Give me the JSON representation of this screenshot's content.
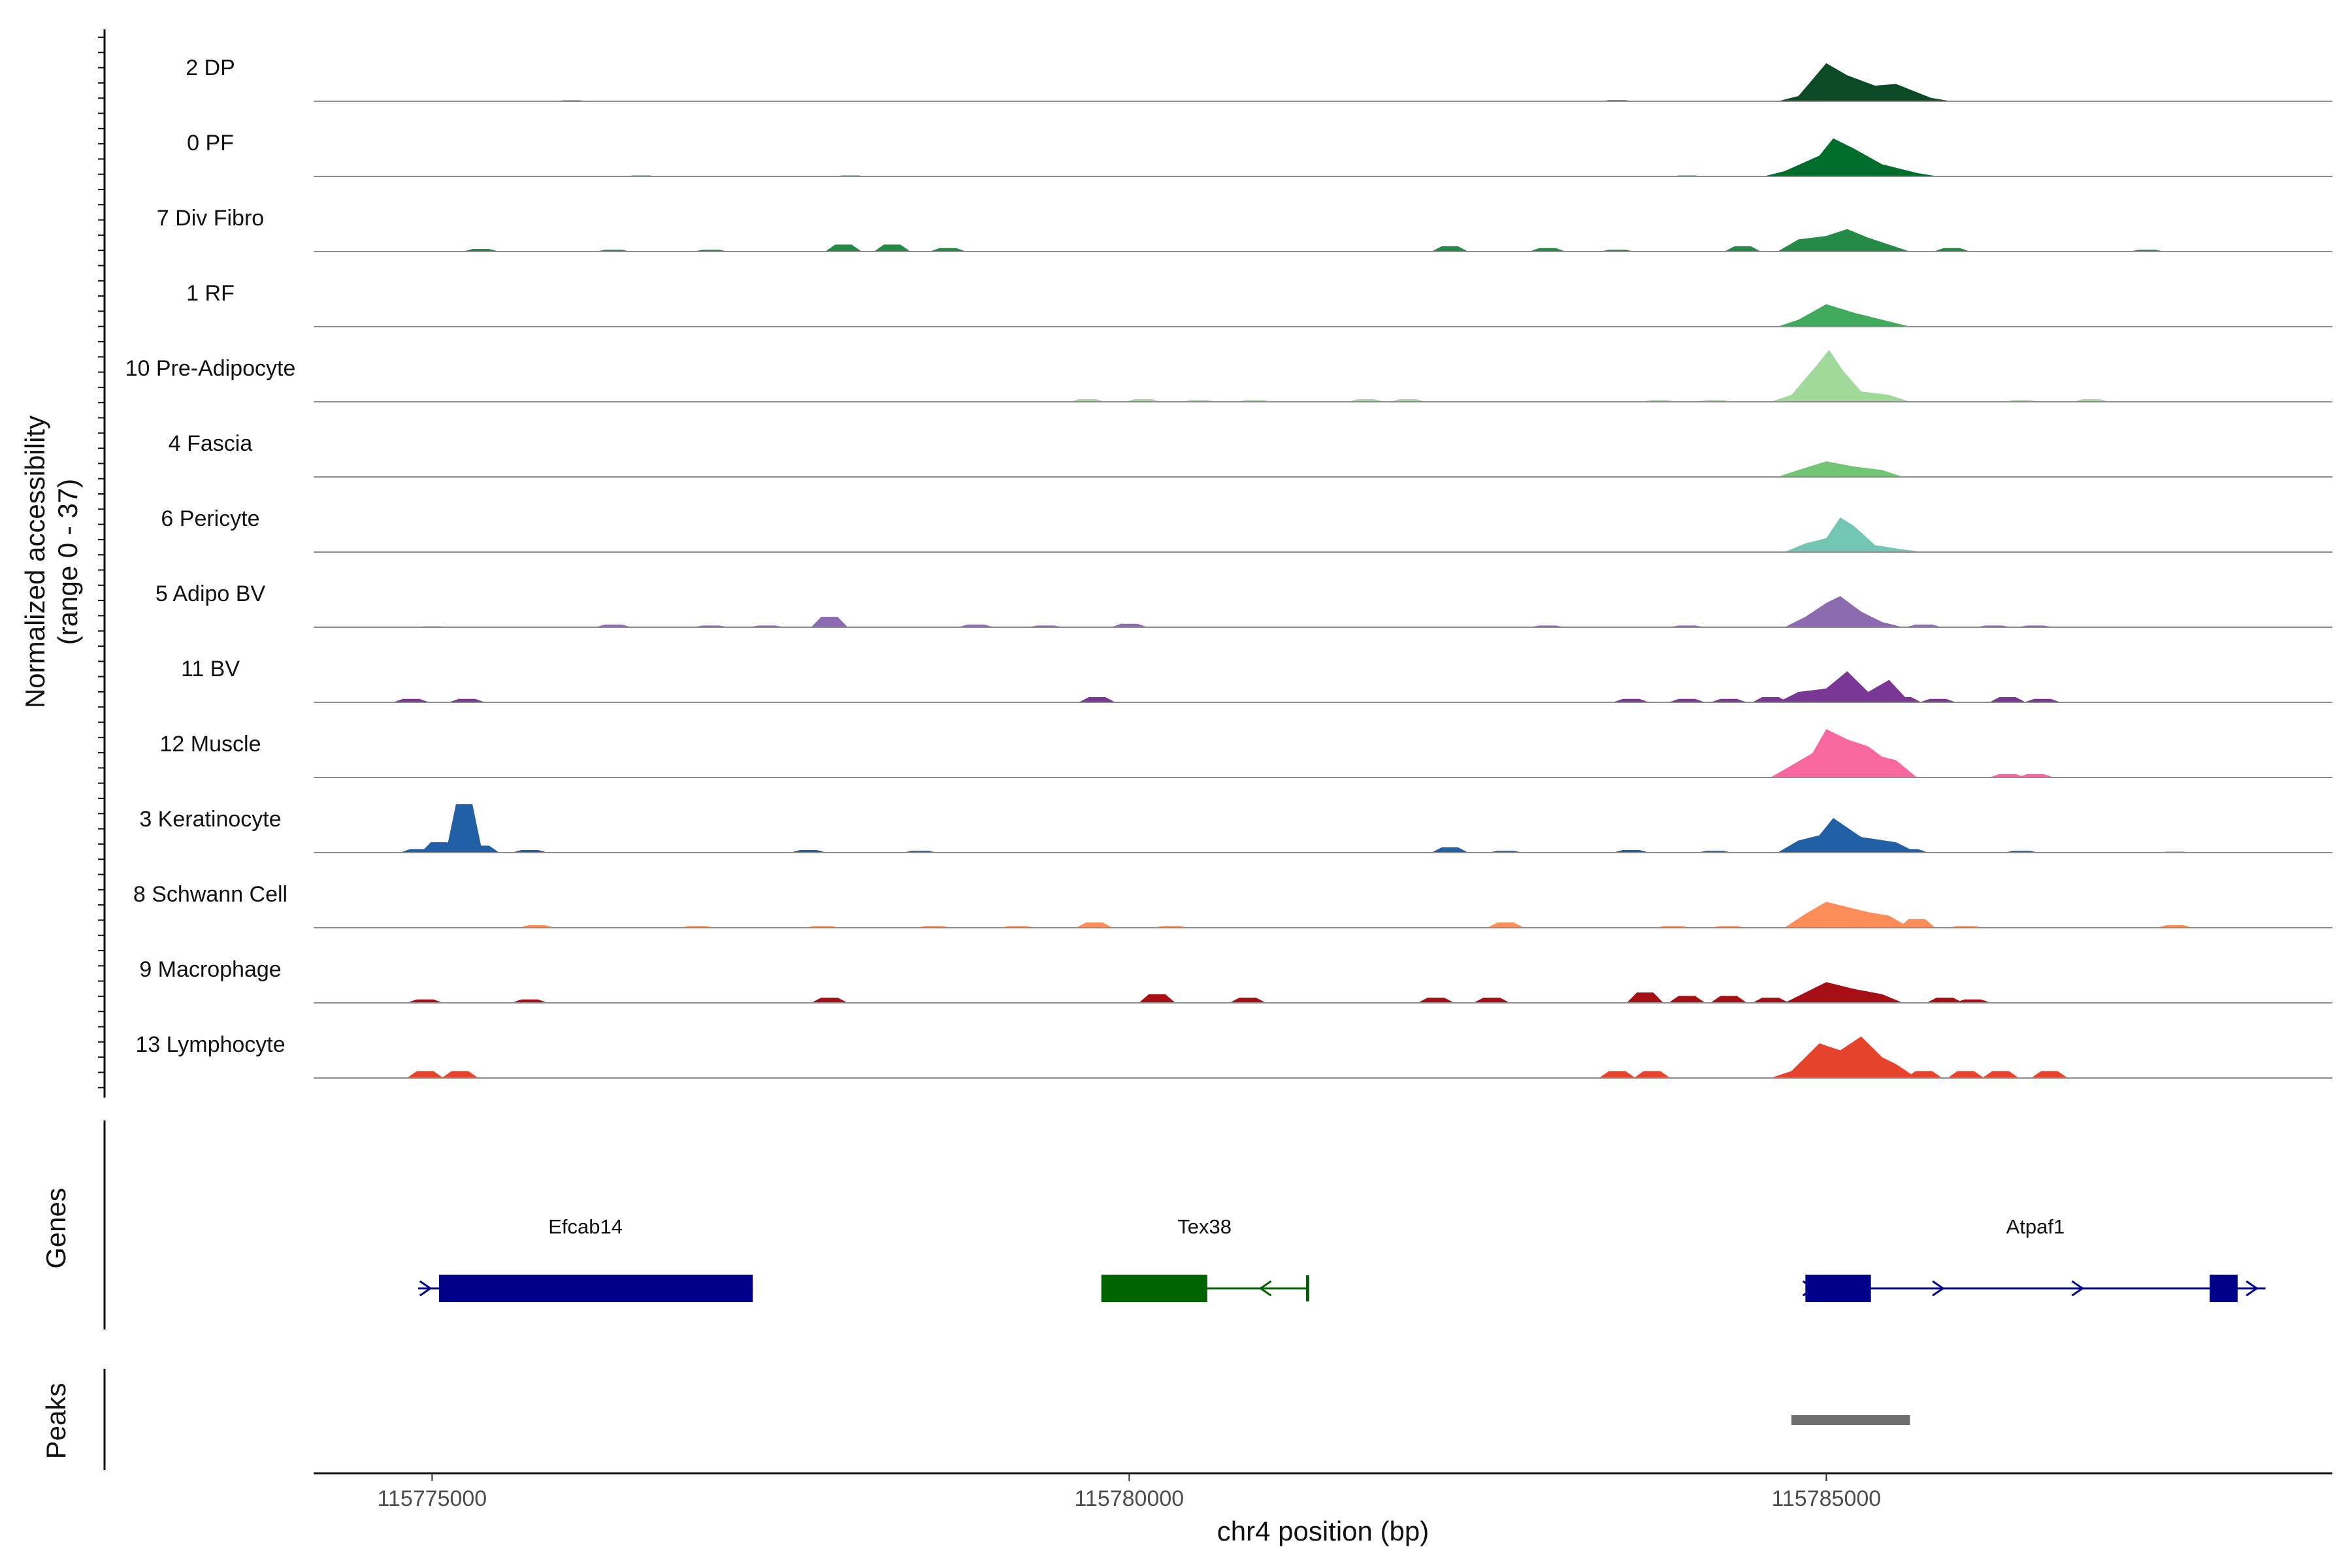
{
  "chart_data": {
    "type": "area",
    "title": "",
    "ylabel": "Normalized accessibility",
    "ylabel_range": "(range 0 - 37)",
    "ylim": [
      0,
      37
    ],
    "xlabel": "chr4 position (bp)",
    "xlim": [
      115774150,
      115788630
    ],
    "xticks": [
      115775000,
      115780000,
      115785000
    ],
    "xtick_labels": [
      "115775000",
      "115780000",
      "115785000"
    ],
    "tracks": [
      {
        "name": "2 DP",
        "color": "#0b4a24",
        "background": [
          [
            115775000,
            0.3
          ],
          [
            115776000,
            0.5
          ],
          [
            115777500,
            0.4
          ],
          [
            115779000,
            0.4
          ],
          [
            115780500,
            0.3
          ],
          [
            115782000,
            0.3
          ],
          [
            115783500,
            0.6
          ],
          [
            115786500,
            0.4
          ],
          [
            115787800,
            0.3
          ]
        ],
        "peaks": [
          [
            115784800,
            3
          ],
          [
            115785000,
            22
          ],
          [
            115785150,
            15
          ],
          [
            115785350,
            9
          ],
          [
            115785500,
            10
          ],
          [
            115785750,
            2
          ]
        ]
      },
      {
        "name": "0 PF",
        "color": "#006d2c",
        "background": [
          [
            115775000,
            0.4
          ],
          [
            115776500,
            0.5
          ],
          [
            115778000,
            0.5
          ],
          [
            115779500,
            0.4
          ],
          [
            115781000,
            0.4
          ],
          [
            115782500,
            0.4
          ],
          [
            115784000,
            0.5
          ],
          [
            115787000,
            0.4
          ]
        ],
        "peaks": [
          [
            115784700,
            3
          ],
          [
            115784950,
            12
          ],
          [
            115785050,
            22
          ],
          [
            115785200,
            16
          ],
          [
            115785400,
            7
          ],
          [
            115785650,
            2
          ]
        ]
      },
      {
        "name": "7 Div Fibro",
        "color": "#238b45",
        "background": [
          [
            115775350,
            1.5
          ],
          [
            115776300,
            1
          ],
          [
            115777000,
            1
          ],
          [
            115777950,
            4
          ],
          [
            115778300,
            4
          ],
          [
            115778700,
            2
          ],
          [
            115782300,
            3
          ],
          [
            115783000,
            2
          ],
          [
            115783500,
            1
          ],
          [
            115784400,
            3
          ],
          [
            115785900,
            2
          ],
          [
            115787300,
            1
          ]
        ],
        "peaks": [
          [
            115784800,
            7
          ],
          [
            115785000,
            9
          ],
          [
            115785150,
            13
          ],
          [
            115785300,
            8
          ],
          [
            115785450,
            4
          ]
        ]
      },
      {
        "name": "1 RF",
        "color": "#41ab5d",
        "background": [
          [
            115776000,
            0.3
          ],
          [
            115778000,
            0.3
          ],
          [
            115780000,
            0.3
          ],
          [
            115782000,
            0.3
          ],
          [
            115784000,
            0.4
          ],
          [
            115786500,
            0.3
          ]
        ],
        "peaks": [
          [
            115784800,
            4
          ],
          [
            115785000,
            13
          ],
          [
            115785200,
            8
          ],
          [
            115785450,
            3
          ]
        ]
      },
      {
        "name": "10 Pre-Adipocyte",
        "color": "#a1d99b",
        "background": [
          [
            115779700,
            1.5
          ],
          [
            115780100,
            1.5
          ],
          [
            115780500,
            1
          ],
          [
            115780900,
            1
          ],
          [
            115781700,
            1.5
          ],
          [
            115782000,
            1.5
          ],
          [
            115783800,
            1
          ],
          [
            115784200,
            1
          ],
          [
            115786400,
            1
          ],
          [
            115786900,
            1.5
          ]
        ],
        "peaks": [
          [
            115784750,
            4
          ],
          [
            115784920,
            20
          ],
          [
            115785020,
            30
          ],
          [
            115785120,
            18
          ],
          [
            115785250,
            6
          ],
          [
            115785450,
            4
          ]
        ]
      },
      {
        "name": "4 Fascia",
        "color": "#74c476",
        "background": [
          [
            115775500,
            0.3
          ],
          [
            115777000,
            0.3
          ],
          [
            115778500,
            0.3
          ],
          [
            115780000,
            0.3
          ],
          [
            115781500,
            0.3
          ],
          [
            115783000,
            0.3
          ],
          [
            115787500,
            0.3
          ]
        ],
        "peaks": [
          [
            115784800,
            4
          ],
          [
            115785000,
            9
          ],
          [
            115785200,
            6
          ],
          [
            115785400,
            4
          ]
        ]
      },
      {
        "name": "6 Pericyte",
        "color": "#74c6b4",
        "background": [
          [
            115776600,
            0.3
          ],
          [
            115777900,
            0.3
          ],
          [
            115779700,
            0.4
          ],
          [
            115780700,
            0.3
          ],
          [
            115782100,
            0.4
          ],
          [
            115783500,
            0.4
          ],
          [
            115784300,
            0.4
          ],
          [
            115786500,
            0.3
          ],
          [
            115787500,
            0.3
          ]
        ],
        "peaks": [
          [
            115784850,
            5
          ],
          [
            115785000,
            8
          ],
          [
            115785100,
            20
          ],
          [
            115785200,
            15
          ],
          [
            115785350,
            4
          ],
          [
            115785550,
            1.5
          ]
        ]
      },
      {
        "name": "5 Adipo BV",
        "color": "#8c6bb1",
        "background": [
          [
            115775000,
            0.5
          ],
          [
            115776300,
            1.5
          ],
          [
            115777000,
            1
          ],
          [
            115777400,
            1
          ],
          [
            115777850,
            6
          ],
          [
            115778900,
            1.5
          ],
          [
            115779400,
            1
          ],
          [
            115780000,
            2
          ],
          [
            115783000,
            1
          ],
          [
            115784000,
            1
          ],
          [
            115785700,
            1.5
          ],
          [
            115786200,
            1
          ],
          [
            115786500,
            1
          ]
        ],
        "peaks": [
          [
            115784850,
            6
          ],
          [
            115785000,
            14
          ],
          [
            115785100,
            18
          ],
          [
            115785250,
            9
          ],
          [
            115785400,
            3
          ]
        ]
      },
      {
        "name": "11 BV",
        "color": "#7a3796",
        "background": [
          [
            115774850,
            2
          ],
          [
            115775250,
            2
          ],
          [
            115779770,
            3
          ],
          [
            115783600,
            2
          ],
          [
            115784000,
            2
          ],
          [
            115784300,
            2
          ],
          [
            115784600,
            3
          ],
          [
            115785550,
            3
          ],
          [
            115785800,
            2
          ],
          [
            115786300,
            3
          ],
          [
            115786550,
            2
          ]
        ],
        "peaks": [
          [
            115784800,
            6
          ],
          [
            115785000,
            8
          ],
          [
            115785150,
            18
          ],
          [
            115785300,
            6
          ],
          [
            115785450,
            13
          ]
        ]
      },
      {
        "name": "12 Muscle",
        "color": "#f768a1",
        "background": [
          [
            115786300,
            2
          ],
          [
            115786500,
            2
          ]
        ],
        "peaks": [
          [
            115784750,
            7
          ],
          [
            115784900,
            14
          ],
          [
            115785000,
            28
          ],
          [
            115785150,
            22
          ],
          [
            115785300,
            18
          ],
          [
            115785400,
            12
          ],
          [
            115785500,
            10
          ]
        ]
      },
      {
        "name": "3 Keratinocyte",
        "color": "#2260a6",
        "background": [
          [
            115774900,
            2
          ],
          [
            115775050,
            6
          ],
          [
            115775230,
            28
          ],
          [
            115775350,
            4
          ],
          [
            115775700,
            1.5
          ],
          [
            115777700,
            1.5
          ],
          [
            115778500,
            1
          ],
          [
            115782300,
            3
          ],
          [
            115782700,
            1
          ],
          [
            115783600,
            1.5
          ],
          [
            115784200,
            1
          ],
          [
            115785600,
            2
          ],
          [
            115786400,
            1
          ],
          [
            115787500,
            0.5
          ]
        ],
        "peaks": [
          [
            115784800,
            7
          ],
          [
            115784950,
            10
          ],
          [
            115785050,
            20
          ],
          [
            115785250,
            9
          ],
          [
            115785500,
            6
          ]
        ]
      },
      {
        "name": "8 Schwann Cell",
        "color": "#fc8d59",
        "background": [
          [
            115775750,
            1.5
          ],
          [
            115776900,
            1
          ],
          [
            115777800,
            1
          ],
          [
            115778600,
            1
          ],
          [
            115779200,
            1
          ],
          [
            115779750,
            3
          ],
          [
            115780300,
            1
          ],
          [
            115782700,
            3
          ],
          [
            115783900,
            1
          ],
          [
            115784300,
            1
          ],
          [
            115785650,
            5
          ],
          [
            115786000,
            1
          ],
          [
            115787500,
            1.5
          ]
        ],
        "peaks": [
          [
            115784850,
            8
          ],
          [
            115785000,
            15
          ],
          [
            115785150,
            12
          ],
          [
            115785300,
            9
          ],
          [
            115785450,
            7
          ]
        ]
      },
      {
        "name": "9 Macrophage",
        "color": "#a50f15",
        "background": [
          [
            115774950,
            2
          ],
          [
            115775700,
            2
          ],
          [
            115777850,
            3
          ],
          [
            115780200,
            5
          ],
          [
            115780850,
            3
          ],
          [
            115782200,
            3
          ],
          [
            115782600,
            3
          ],
          [
            115783700,
            6
          ],
          [
            115784000,
            4
          ],
          [
            115784300,
            4
          ],
          [
            115784600,
            3
          ],
          [
            115785850,
            3
          ],
          [
            115786050,
            2
          ]
        ],
        "peaks": [
          [
            115784850,
            6
          ],
          [
            115785000,
            12
          ],
          [
            115785200,
            8
          ],
          [
            115785400,
            5
          ]
        ]
      },
      {
        "name": "13 Lymphocyte",
        "color": "#e6432d",
        "background": [
          [
            115774950,
            4
          ],
          [
            115775200,
            4
          ],
          [
            115783500,
            4
          ],
          [
            115783750,
            4
          ],
          [
            115785700,
            4
          ],
          [
            115786000,
            4
          ],
          [
            115786250,
            4
          ],
          [
            115786600,
            4
          ]
        ],
        "peaks": [
          [
            115784750,
            4
          ],
          [
            115784950,
            20
          ],
          [
            115785100,
            16
          ],
          [
            115785250,
            24
          ],
          [
            115785400,
            12
          ],
          [
            115785500,
            8
          ]
        ]
      }
    ],
    "genes": [
      {
        "name": "Efcab14",
        "strand": "+",
        "color": "#00008b",
        "start": 115774900,
        "end": 115777300,
        "exons": [
          [
            115775050,
            115777300
          ]
        ],
        "arrows": [
          115774950
        ]
      },
      {
        "name": "Tex38",
        "strand": "-",
        "color": "#006400",
        "start": 115779800,
        "end": 115781280,
        "exons": [
          [
            115779800,
            115780560
          ]
        ],
        "arrows": [
          115780980
        ],
        "end_cap": 115781280
      },
      {
        "name": "Atpaf1",
        "strand": "+",
        "color": "#00008b",
        "start": 115784850,
        "end": 115788150,
        "exons": [
          [
            115784850,
            115785320
          ],
          [
            115787750,
            115787950
          ]
        ],
        "arrows": [
          115784870,
          115785800,
          115786800,
          115788050
        ]
      }
    ],
    "genes_label": "Genes",
    "peaks_label": "Peaks",
    "peak_regions": [
      [
        115784750,
        115785600
      ]
    ],
    "peak_color": "#6e6e6e"
  }
}
